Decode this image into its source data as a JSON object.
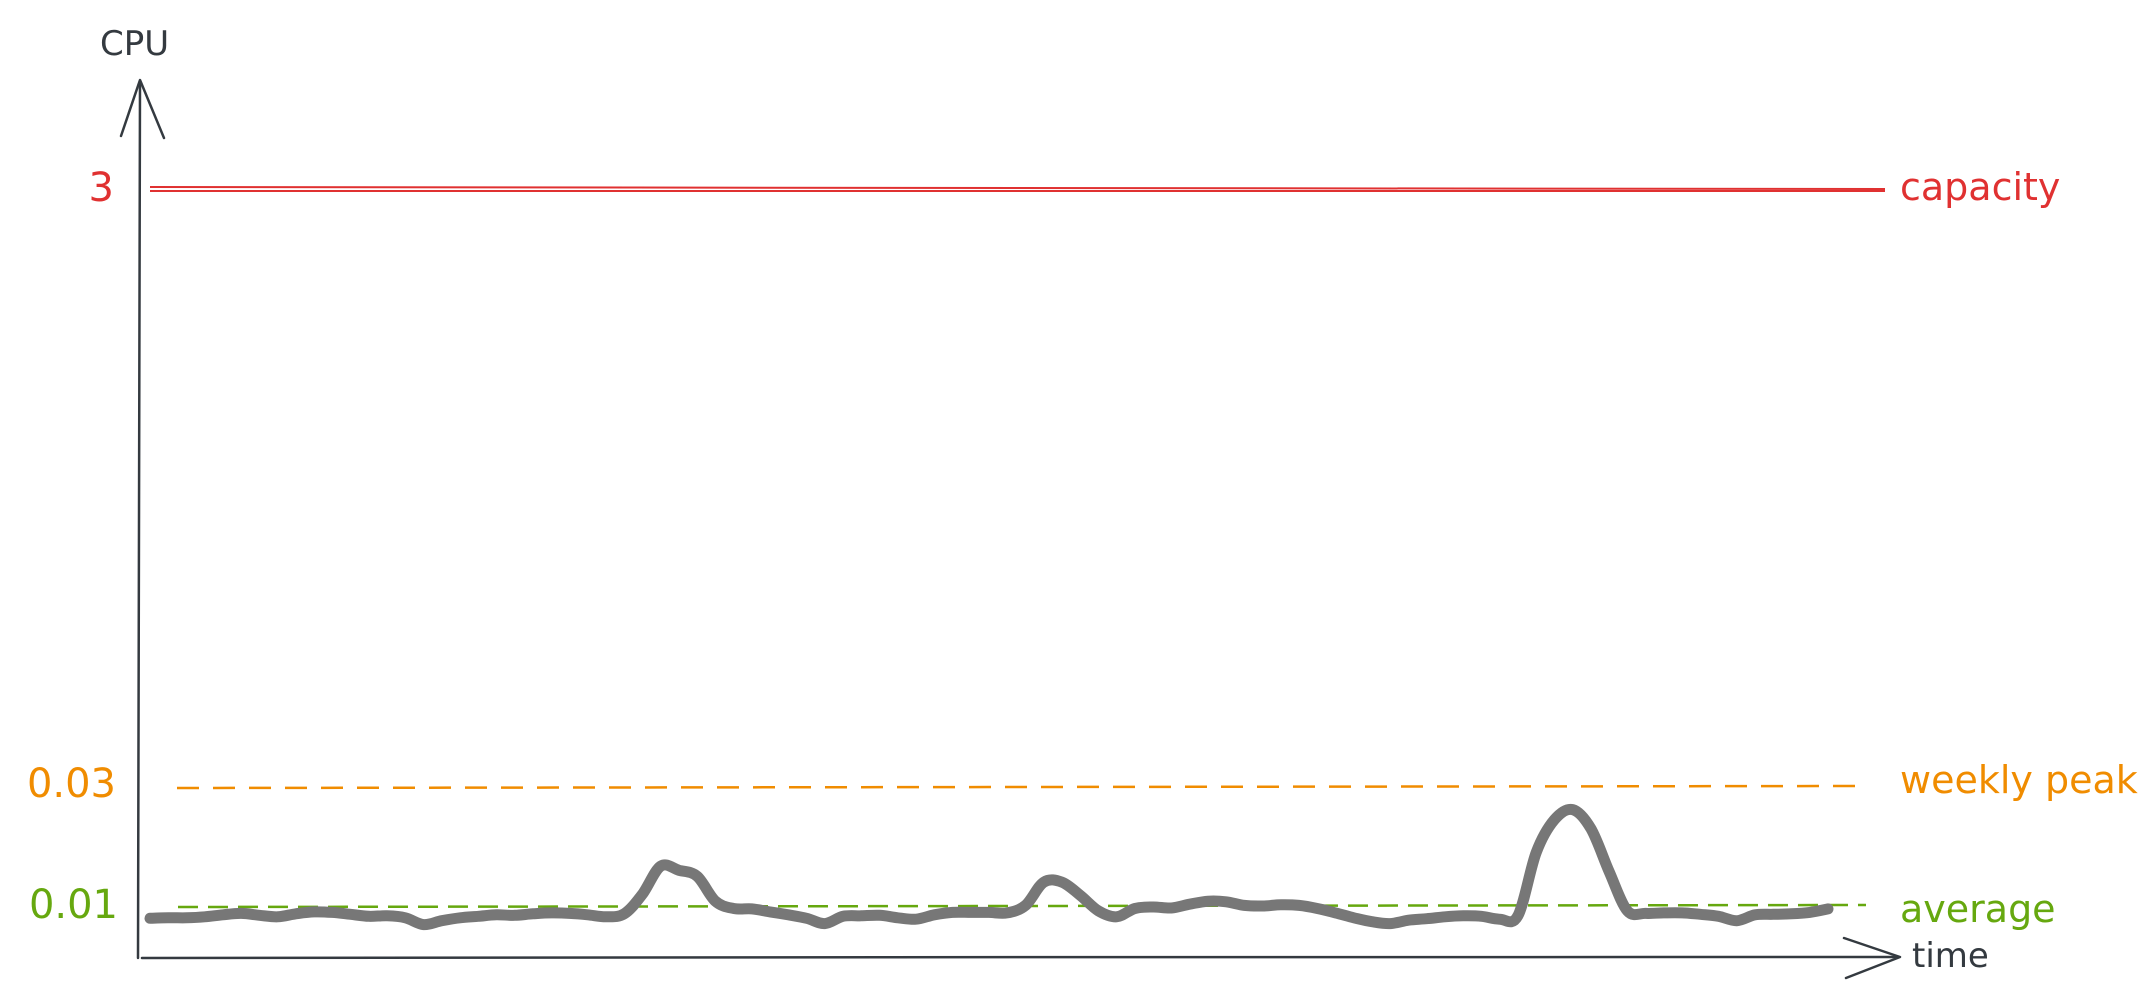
{
  "chart_data": {
    "type": "line",
    "xlabel": "time",
    "ylabel": "CPU",
    "colors": {
      "axis": "#343a40",
      "series": "#777777",
      "capacity": "#e03131",
      "weekly_peak": "#f08c00",
      "average": "#66a80f"
    },
    "reference_lines": [
      {
        "key": "capacity",
        "label": "capacity",
        "value_label": "3",
        "value": 3,
        "style": "solid"
      },
      {
        "key": "weekly_peak",
        "label": "weekly peak",
        "value_label": "0.03",
        "value": 0.03,
        "style": "dashed"
      },
      {
        "key": "average",
        "label": "average",
        "value_label": "0.01",
        "value": 0.01,
        "style": "dashed"
      }
    ],
    "series": [
      {
        "values": [
          0.0075,
          0.0076,
          0.0076,
          0.0078,
          0.0082,
          0.0085,
          0.0081,
          0.0078,
          0.0084,
          0.0088,
          0.0087,
          0.0083,
          0.0079,
          0.008,
          0.0076,
          0.0062,
          0.007,
          0.0076,
          0.0079,
          0.0082,
          0.0081,
          0.0084,
          0.0086,
          0.0085,
          0.0082,
          0.0078,
          0.0084,
          0.012,
          0.0167,
          0.016,
          0.015,
          0.0108,
          0.0095,
          0.0094,
          0.0088,
          0.0082,
          0.0075,
          0.0064,
          0.0079,
          0.008,
          0.0081,
          0.0076,
          0.0073,
          0.0082,
          0.0087,
          0.0087,
          0.0087,
          0.0086,
          0.0101,
          0.014,
          0.014,
          0.0118,
          0.009,
          0.0078,
          0.0095,
          0.0098,
          0.0096,
          0.0103,
          0.0108,
          0.0107,
          0.0101,
          0.01,
          0.0102,
          0.0101,
          0.0095,
          0.0086,
          0.0076,
          0.0068,
          0.0064,
          0.0071,
          0.0074,
          0.0078,
          0.008,
          0.0079,
          0.0073,
          0.008,
          0.019,
          0.0245,
          0.0262,
          0.023,
          0.0158,
          0.009,
          0.0085,
          0.0086,
          0.0086,
          0.0083,
          0.0079,
          0.007,
          0.0082,
          0.0083,
          0.0084,
          0.0087,
          0.0094
        ]
      }
    ]
  }
}
